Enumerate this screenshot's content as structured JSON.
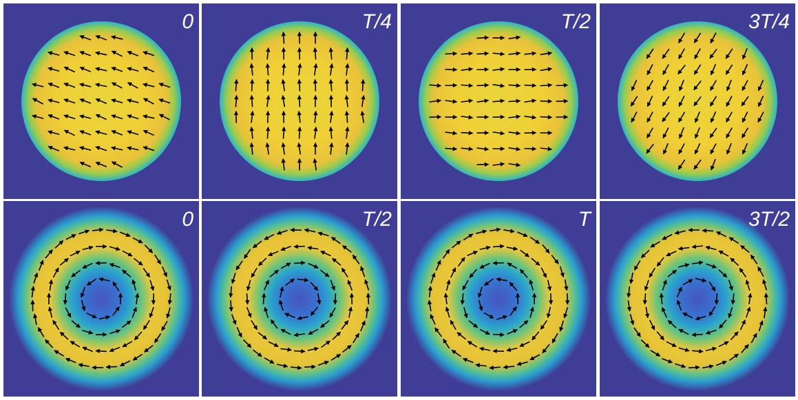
{
  "panels": {
    "rows": [
      {
        "labels": [
          "0",
          "T/4",
          "T/2",
          "3T/4"
        ]
      },
      {
        "labels": [
          "0",
          "T/2",
          "T",
          "3T/2"
        ]
      }
    ]
  }
}
